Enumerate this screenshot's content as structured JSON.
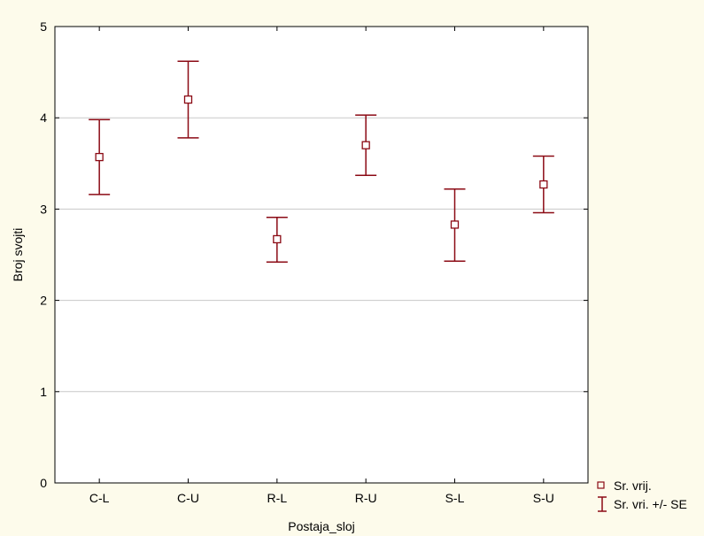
{
  "colors": {
    "background": "#fdfbeb",
    "plot_area": "#ffffff",
    "series": "#8b0a14",
    "grid": "#c8c8c8"
  },
  "chart_data": {
    "type": "scatter",
    "title": "",
    "xlabel": "Postaja_sloj",
    "ylabel": "Broj svojti",
    "categories": [
      "C-L",
      "C-U",
      "R-L",
      "R-U",
      "S-L",
      "S-U"
    ],
    "ylim": [
      0,
      5
    ],
    "yticks": [
      "0",
      "1",
      "2",
      "3",
      "4",
      "5"
    ],
    "grid": "horizontal",
    "legend_position": "bottom-right, outside plot",
    "series": [
      {
        "name": "Sr. vrij.",
        "marker": "square",
        "values": [
          3.57,
          4.2,
          2.67,
          3.7,
          2.83,
          3.27
        ]
      },
      {
        "name": "Sr. vri. +/- SE",
        "marker": "error-bar",
        "lower": [
          3.16,
          3.78,
          2.42,
          3.37,
          2.43,
          2.96
        ],
        "upper": [
          3.98,
          4.62,
          2.91,
          4.03,
          3.22,
          3.58
        ]
      }
    ]
  }
}
